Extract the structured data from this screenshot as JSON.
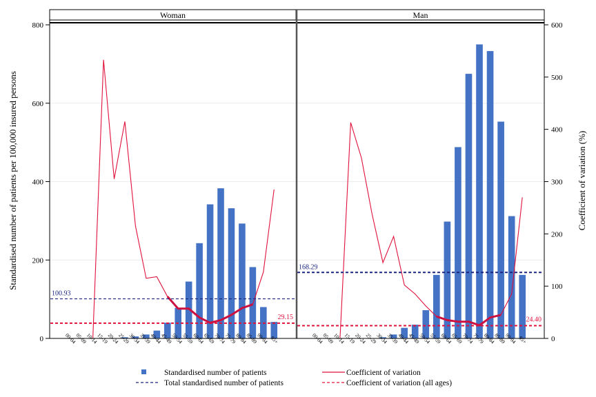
{
  "chart_data": {
    "type": "bar",
    "panels": [
      {
        "name": "Woman",
        "total_label": "100.93",
        "total_value": 100.93,
        "cv_all_label": "29.15",
        "cv_all_value": 29.15
      },
      {
        "name": "Man",
        "total_label": "168.29",
        "total_value": 168.29,
        "cv_all_label": "24.40",
        "cv_all_value": 24.4
      }
    ],
    "categories": [
      "00-04",
      "05-09",
      "10-14",
      "15-19",
      "20-24",
      "25-29",
      "30-34",
      "35-39",
      "40-44",
      "45-49",
      "50-54",
      "55-59",
      "60-64",
      "65-69",
      "70-74",
      "75-79",
      "80-84",
      "85-89",
      "90-94",
      "95+"
    ],
    "series": [
      {
        "name": "Standardised number of patients",
        "kind": "bar",
        "axis": "left",
        "values_woman": [
          0,
          0,
          0,
          0,
          0,
          3,
          5,
          10,
          20,
          40,
          78,
          145,
          243,
          342,
          383,
          332,
          293,
          182,
          80,
          42
        ],
        "values_man": [
          0,
          0,
          0,
          0,
          0,
          0,
          3,
          10,
          27,
          35,
          72,
          162,
          298,
          488,
          675,
          750,
          733,
          553,
          312,
          162
        ]
      },
      {
        "name": "Coefficient of variation",
        "kind": "line",
        "axis": "right",
        "values_woman": [
          null,
          null,
          null,
          533,
          305,
          415,
          215,
          115,
          118,
          80,
          57,
          57,
          40,
          30,
          35,
          45,
          58,
          65,
          127,
          285
        ],
        "values_man": [
          null,
          null,
          null,
          413,
          345,
          237,
          145,
          195,
          102,
          85,
          62,
          42,
          35,
          32,
          32,
          25,
          40,
          45,
          85,
          270
        ]
      }
    ],
    "cv_highlight": {
      "woman_values": [
        80,
        57,
        57,
        40,
        30,
        35,
        45,
        58,
        65
      ],
      "man_values": [
        42,
        35,
        32,
        32,
        25,
        40,
        45
      ]
    },
    "ylabel_left": "Standardised number of patients per 100,000 insured persons",
    "ylabel_right": "Coefficient of variation (%)",
    "left_ticks": [
      "0",
      "200",
      "400",
      "600",
      "800"
    ],
    "right_ticks": [
      "0",
      "100",
      "200",
      "300",
      "400",
      "500",
      "600"
    ],
    "ylim_left": [
      0,
      800
    ],
    "ylim_right": [
      0,
      600
    ],
    "grid": true,
    "legend_position": "bottom",
    "legend": [
      {
        "label": "Standardised number of patients",
        "kind": "bar-square",
        "color": "#4472c4"
      },
      {
        "label": "Coefficient of variation",
        "kind": "solid-line",
        "color": "#e0103a"
      },
      {
        "label": "Total standardised number of patients",
        "kind": "dashed-line",
        "color": "#1a237e"
      },
      {
        "label": "Coefficient of variation (all ages)",
        "kind": "dashed-line",
        "color": "#e0103a"
      }
    ],
    "colors": {
      "bar": "#4472c4",
      "cv_line": "#e0103a",
      "cv_highlight": "#cc1040",
      "total_line": "#1a237e",
      "cv_all_line": "#e0103a"
    }
  }
}
